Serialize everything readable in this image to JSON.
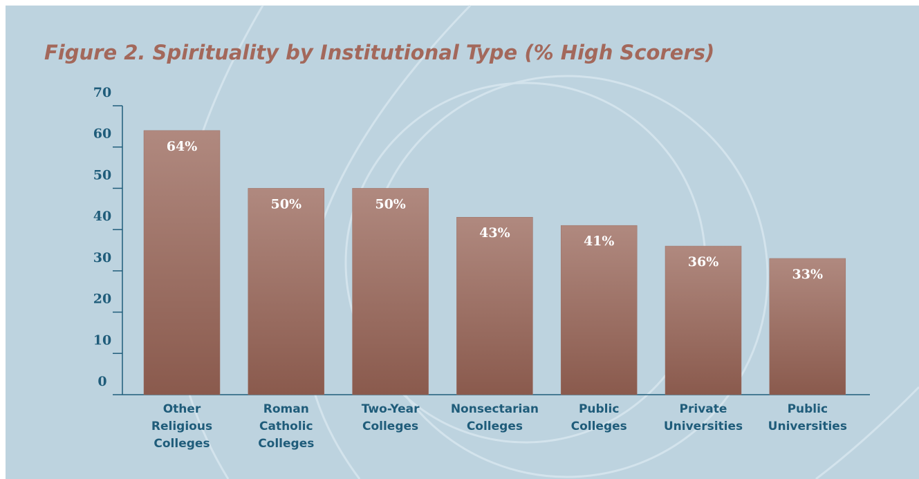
{
  "chart_data": {
    "type": "bar",
    "title": "Figure 2.  Spirituality by Institutional Type (% High Scorers)",
    "categories": [
      "Other Religious Colleges",
      "Roman Catholic Colleges",
      "Two-Year Colleges",
      "Nonsectarian Colleges",
      "Public Colleges",
      "Private Universities",
      "Public Universities"
    ],
    "values": [
      64,
      50,
      50,
      43,
      41,
      36,
      33
    ],
    "value_labels": [
      "64%",
      "50%",
      "50%",
      "43%",
      "41%",
      "36%",
      "33%"
    ],
    "color": "#9c6d61",
    "ylim": [
      0,
      70
    ],
    "yticks": [
      0,
      10,
      20,
      30,
      40,
      50,
      60,
      70
    ]
  }
}
